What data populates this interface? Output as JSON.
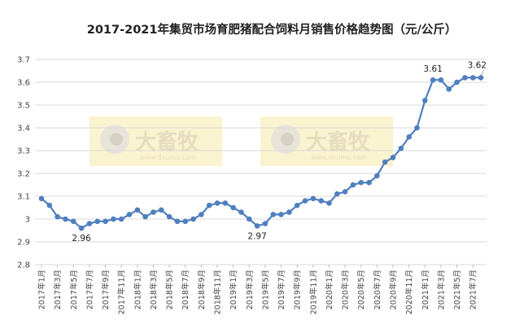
{
  "chart_data": {
    "type": "line",
    "title": "2017-2021年集贸市场育肥猪配合饲料月销售价格趋势图（元/公斤）",
    "xlabel": "",
    "ylabel": "",
    "ylim": [
      2.8,
      3.7
    ],
    "yticks": [
      "2.8",
      "2.9",
      "3",
      "3.1",
      "3.2",
      "3.3",
      "3.4",
      "3.5",
      "3.6",
      "3.7"
    ],
    "grid": "horizontal",
    "series_color": "#4f7fbf",
    "x": [
      "2017年1月",
      "2017年2月",
      "2017年3月",
      "2017年4月",
      "2017年5月",
      "2017年6月",
      "2017年7月",
      "2017年8月",
      "2017年9月",
      "2017年10月",
      "2017年11月",
      "2017年12月",
      "2018年1月",
      "2018年2月",
      "2018年3月",
      "2018年4月",
      "2018年5月",
      "2018年6月",
      "2018年7月",
      "2018年8月",
      "2018年9月",
      "2018年10月",
      "2018年11月",
      "2018年12月",
      "2019年1月",
      "2019年2月",
      "2019年3月",
      "2019年4月",
      "2019年5月",
      "2019年6月",
      "2019年7月",
      "2019年8月",
      "2019年9月",
      "2019年10月",
      "2019年11月",
      "2019年12月",
      "2020年1月",
      "2020年2月",
      "2020年3月",
      "2020年4月",
      "2020年5月",
      "2020年6月",
      "2020年7月",
      "2020年8月",
      "2020年9月",
      "2020年10月",
      "2020年11月",
      "2020年12月",
      "2021年1月",
      "2021年2月",
      "2021年3月",
      "2021年4月",
      "2021年5月",
      "2021年6月",
      "2021年7月",
      "2021年8月"
    ],
    "xtick_labels": [
      "2017年1月",
      "2017年3月",
      "2017年5月",
      "2017年7月",
      "2017年9月",
      "2017年11月",
      "2018年1月",
      "2018年3月",
      "2018年5月",
      "2018年7月",
      "2018年9月",
      "2018年11月",
      "2019年1月",
      "2019年3月",
      "2019年5月",
      "2019年7月",
      "2019年9月",
      "2019年11月",
      "2020年1月",
      "2020年3月",
      "2020年5月",
      "2020年7月",
      "2020年9月",
      "2020年11月",
      "2021年1月",
      "2021年3月",
      "2021年5月",
      "2021年7月"
    ],
    "values": [
      3.09,
      3.06,
      3.01,
      3.0,
      2.99,
      2.96,
      2.98,
      2.99,
      2.99,
      3.0,
      3.0,
      3.02,
      3.04,
      3.01,
      3.03,
      3.04,
      3.01,
      2.99,
      2.99,
      3.0,
      3.02,
      3.06,
      3.07,
      3.07,
      3.05,
      3.03,
      3.0,
      2.97,
      2.98,
      3.02,
      3.02,
      3.03,
      3.06,
      3.08,
      3.09,
      3.08,
      3.07,
      3.11,
      3.12,
      3.15,
      3.16,
      3.16,
      3.19,
      3.25,
      3.27,
      3.31,
      3.36,
      3.4,
      3.52,
      3.61,
      3.61,
      3.57,
      3.6,
      3.62,
      3.62,
      3.62
    ],
    "annotations": [
      {
        "index": 5,
        "text": "2.96"
      },
      {
        "index": 27,
        "text": "2.97"
      },
      {
        "index": 49,
        "text": "3.61"
      },
      {
        "index": 55,
        "text": "3.62"
      }
    ]
  },
  "watermark": {
    "text": "大畜牧",
    "url": "www.dxumu.com"
  }
}
